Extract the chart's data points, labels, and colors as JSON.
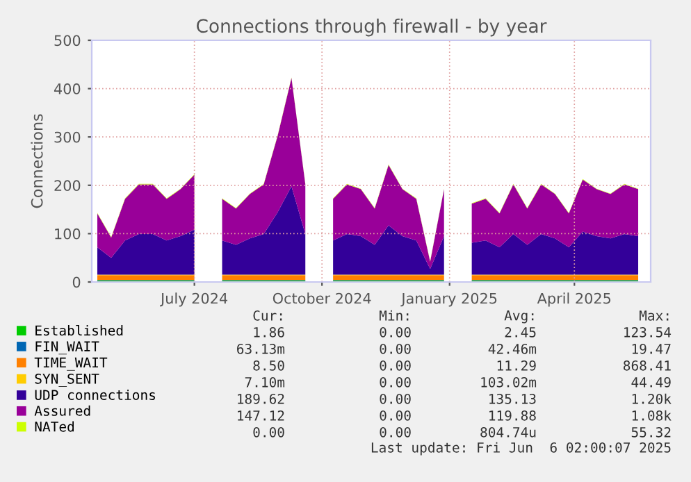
{
  "chart_data": {
    "type": "area",
    "stacked": true,
    "title": "Connections through firewall - by year",
    "ylabel": "Connections",
    "x": [
      "2024-04-22",
      "2024-05-02",
      "2024-05-12",
      "2024-05-22",
      "2024-06-01",
      "2024-06-11",
      "2024-06-21",
      "2024-07-01",
      "2024-07-11",
      "2024-07-21",
      "2024-07-31",
      "2024-08-10",
      "2024-08-20",
      "2024-08-30",
      "2024-09-09",
      "2024-09-19",
      "2024-09-29",
      "2024-10-09",
      "2024-10-19",
      "2024-10-29",
      "2024-11-08",
      "2024-11-18",
      "2024-11-28",
      "2024-12-08",
      "2024-12-18",
      "2024-12-28",
      "2025-01-07",
      "2025-01-17",
      "2025-01-27",
      "2025-02-06",
      "2025-02-16",
      "2025-02-26",
      "2025-03-08",
      "2025-03-18",
      "2025-03-28",
      "2025-04-07",
      "2025-04-17",
      "2025-04-27",
      "2025-05-07",
      "2025-05-17"
    ],
    "series": [
      {
        "name": "Established",
        "color": "#00cc00",
        "values": [
          3,
          3,
          3,
          3,
          3,
          3,
          3,
          3,
          null,
          3,
          3,
          3,
          3,
          3,
          3,
          3,
          null,
          3,
          3,
          3,
          3,
          3,
          3,
          3,
          3,
          3,
          null,
          3,
          3,
          3,
          3,
          3,
          3,
          3,
          3,
          3,
          3,
          3,
          3,
          3
        ]
      },
      {
        "name": "FIN_WAIT",
        "color": "#0066b3",
        "values": [
          1,
          1,
          1,
          1,
          1,
          1,
          1,
          1,
          null,
          1,
          1,
          1,
          1,
          1,
          1,
          1,
          null,
          1,
          1,
          1,
          1,
          1,
          1,
          1,
          1,
          1,
          null,
          1,
          1,
          1,
          1,
          1,
          1,
          1,
          1,
          1,
          1,
          1,
          1,
          1
        ]
      },
      {
        "name": "TIME_WAIT",
        "color": "#ff8000",
        "values": [
          10,
          10,
          10,
          10,
          10,
          10,
          10,
          10,
          null,
          10,
          10,
          10,
          10,
          10,
          10,
          10,
          null,
          10,
          10,
          10,
          10,
          10,
          10,
          10,
          10,
          10,
          null,
          10,
          10,
          10,
          10,
          10,
          10,
          10,
          10,
          10,
          10,
          10,
          10,
          10
        ]
      },
      {
        "name": "SYN_SENT",
        "color": "#ffcc00",
        "values": [
          1,
          1,
          1,
          1,
          1,
          1,
          1,
          1,
          null,
          1,
          1,
          1,
          1,
          1,
          1,
          1,
          null,
          1,
          1,
          1,
          1,
          1,
          1,
          1,
          1,
          1,
          null,
          1,
          1,
          1,
          1,
          1,
          1,
          1,
          1,
          1,
          1,
          1,
          1,
          1
        ]
      },
      {
        "name": "UDP connections",
        "color": "#330099",
        "values": [
          57,
          35,
          71,
          84,
          84,
          71,
          80,
          93,
          null,
          71,
          62,
          75,
          84,
          129,
          183,
          84,
          null,
          71,
          84,
          80,
          62,
          102,
          80,
          71,
          12,
          80,
          null,
          66,
          71,
          57,
          84,
          62,
          84,
          75,
          57,
          89,
          80,
          75,
          84,
          80
        ]
      },
      {
        "name": "Assured",
        "color": "#990099",
        "values": [
          70,
          42,
          86,
          103,
          103,
          86,
          97,
          114,
          null,
          86,
          75,
          92,
          103,
          158,
          224,
          103,
          null,
          86,
          103,
          97,
          75,
          125,
          97,
          86,
          15,
          97,
          null,
          81,
          86,
          70,
          103,
          75,
          103,
          92,
          70,
          108,
          97,
          92,
          103,
          97
        ]
      },
      {
        "name": "NATed",
        "color": "#ccff00",
        "values": [
          1,
          1,
          1,
          1,
          1,
          1,
          1,
          1,
          null,
          1,
          1,
          1,
          1,
          1,
          1,
          1,
          null,
          1,
          1,
          1,
          1,
          1,
          1,
          1,
          1,
          1,
          null,
          1,
          1,
          1,
          1,
          1,
          1,
          1,
          1,
          1,
          1,
          1,
          1,
          1
        ]
      }
    ],
    "xlim": [
      "2024-04-18",
      "2025-05-26"
    ],
    "xticks": [
      {
        "value": "2024-07-01",
        "label": "July 2024"
      },
      {
        "value": "2024-10-01",
        "label": "October 2024"
      },
      {
        "value": "2025-01-01",
        "label": "January 2025"
      },
      {
        "value": "2025-04-01",
        "label": "April 2025"
      }
    ],
    "ylim": [
      0,
      500
    ],
    "yticks": [
      0,
      100,
      200,
      300,
      400,
      500
    ],
    "grid": true,
    "legend": "bottom",
    "annotations": [
      "Cur:",
      "Min:",
      "Avg:",
      "Max:",
      "1.86",
      "0.00",
      "2.45",
      "123.54",
      "63.13m",
      "0.00",
      "42.46m",
      "19.47",
      "8.50",
      "0.00",
      "11.29",
      "868.41",
      "7.10m",
      "0.00",
      "103.02m",
      "44.49",
      "189.62",
      "0.00",
      "135.13",
      "1.20k",
      "147.12",
      "0.00",
      "119.88",
      "1.08k",
      "0.00",
      "0.00",
      "804.74u",
      "55.32",
      "Last update: Fri Jun  6 02:00:07 2025"
    ]
  }
}
